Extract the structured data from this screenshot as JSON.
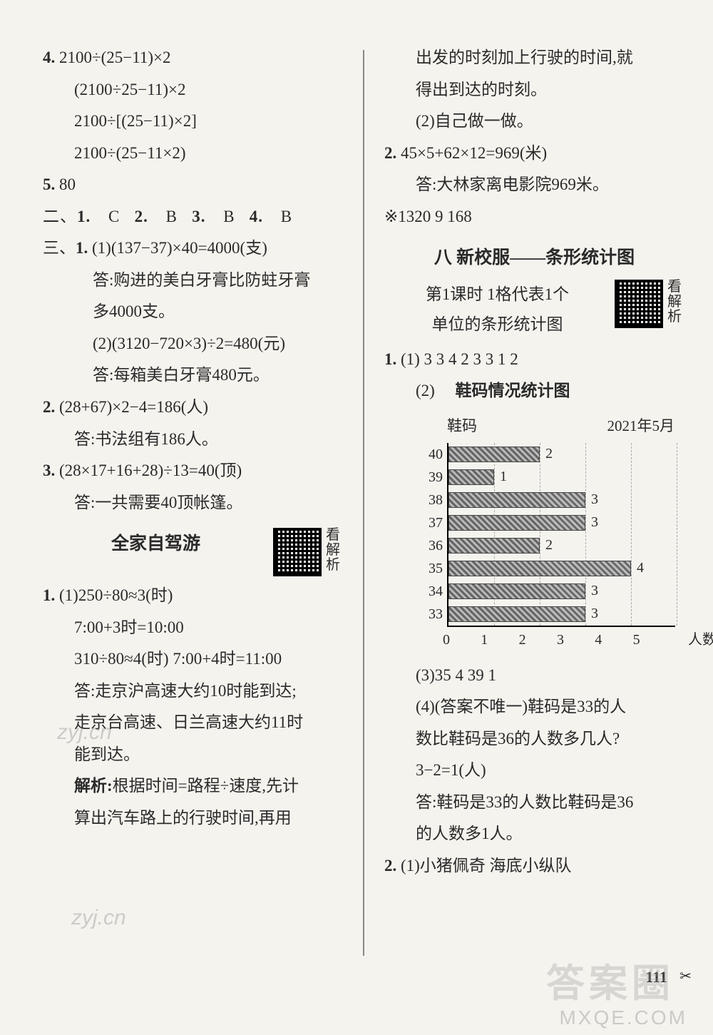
{
  "left": {
    "q4": {
      "n": "4.",
      "l1": "2100÷(25−11)×2",
      "l2": "(2100÷25−11)×2",
      "l3": "2100÷[(25−11)×2]",
      "l4": "2100÷(25−11×2)"
    },
    "q5": {
      "n": "5.",
      "val": "80"
    },
    "sec2": {
      "label": "二、",
      "mc": [
        {
          "n": "1.",
          "a": "C"
        },
        {
          "n": "2.",
          "a": "B"
        },
        {
          "n": "3.",
          "a": "B"
        },
        {
          "n": "4.",
          "a": "B"
        }
      ]
    },
    "sec3": {
      "label": "三、",
      "q1": {
        "n": "1.",
        "p1": "(1)(137−37)×40=4000(支)",
        "a1a": "答:购进的美白牙膏比防蛀牙膏",
        "a1b": "多4000支。",
        "p2": "(2)(3120−720×3)÷2=480(元)",
        "a2": "答:每箱美白牙膏480元。"
      },
      "q2": {
        "n": "2.",
        "eq": "(28+67)×2−4=186(人)",
        "ans": "答:书法组有186人。"
      },
      "q3": {
        "n": "3.",
        "eq": "(28×17+16+28)÷13=40(顶)",
        "ans": "答:一共需要40顶帐篷。"
      }
    },
    "title": "全家自驾游",
    "qr_label": "看解析",
    "drive": {
      "q1": {
        "n": "1.",
        "l1": "(1)250÷80≈3(时)",
        "l2": "7:00+3时=10:00",
        "l3": "310÷80≈4(时)  7:00+4时=11:00",
        "l4": "答:走京沪高速大约10时能到达;",
        "l5": "走京台高速、日兰高速大约11时",
        "l6": "能到达。",
        "l7": "解析:根据时间=路程÷速度,先计",
        "l7_bold": "解析:",
        "l7_rest": "根据时间=路程÷速度,先计",
        "l8": "算出汽车路上的行驶时间,再用"
      }
    }
  },
  "right": {
    "cont": {
      "l1": "出发的时刻加上行驶的时间,就",
      "l2": "得出到达的时刻。",
      "l3": "(2)自己做一做。"
    },
    "q2": {
      "n": "2.",
      "eq": "45×5+62×12=969(米)",
      "ans": "答:大林家离电影院969米。"
    },
    "extra": "※1320  9  168",
    "title": "八  新校服——条形统计图",
    "lesson": {
      "l1": "第1课时  1格代表1个",
      "l2": "单位的条形统计图"
    },
    "qr_label": "看解析",
    "stats": {
      "q1": {
        "n": "1.",
        "p1": "(1) 3   3   4   2   3   3   1   2",
        "p2_label": "(2)",
        "p2_title": "鞋码情况统计图",
        "chart": {
          "header_left": "鞋码",
          "header_right": "2021年5月",
          "xmax": 5,
          "x_unit": "人数",
          "xticks": [
            "0",
            "1",
            "2",
            "3",
            "4",
            "5"
          ],
          "bar_width_per_unit": 64,
          "bar_color": "repeating-linear-gradient(45deg, #666 0 3px, #bbb 3px 6px)",
          "rows": [
            {
              "label": "40",
              "value": 2
            },
            {
              "label": "39",
              "value": 1
            },
            {
              "label": "38",
              "value": 3
            },
            {
              "label": "37",
              "value": 3
            },
            {
              "label": "36",
              "value": 2
            },
            {
              "label": "35",
              "value": 4
            },
            {
              "label": "34",
              "value": 3
            },
            {
              "label": "33",
              "value": 3
            }
          ]
        },
        "p3": "(3)35  4  39  1",
        "p4a": "(4)(答案不唯一)鞋码是33的人",
        "p4b": "数比鞋码是36的人数多几人?",
        "p4c": "3−2=1(人)",
        "p4d": "答:鞋码是33的人数比鞋码是36",
        "p4e": "的人数多1人。"
      },
      "q2": {
        "n": "2.",
        "p1": "(1)小猪佩奇  海底小纵队"
      }
    }
  },
  "page_number": "111",
  "watermark1": "答案圈",
  "watermark2": "MXQE.COM",
  "overlay_a": "zyj.cn",
  "overlay_b": "zyj.cn"
}
